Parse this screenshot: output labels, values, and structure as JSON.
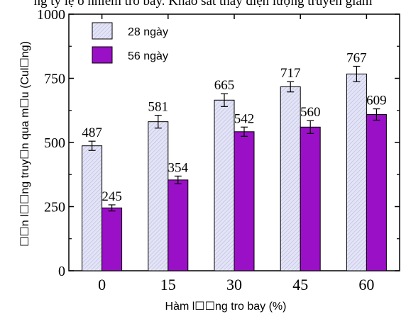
{
  "caption_fragment": "ng tỷ lệ ô nhiễm tro bay. Khảo sát thấy điện lượng truyền giảm",
  "colors": {
    "series_28": "#e4e4f8",
    "series_56": "#9a10c6",
    "hatch": "#b8b8d8"
  },
  "chart_data": {
    "type": "bar",
    "categories": [
      "0",
      "15",
      "30",
      "45",
      "60"
    ],
    "xlabel": "Hàm l☐☐ng tro bay (%)",
    "ylabel": "☐☐n l☐☐ng truy☐n qua m☐u (Cul☐ng)",
    "ylim": [
      0,
      1000
    ],
    "yticks": [
      "0",
      "250",
      "500",
      "750",
      "1000"
    ],
    "grid": false,
    "legend_placement": "top-left",
    "series": [
      {
        "name": "28 ngày",
        "values": [
          487,
          581,
          665,
          717,
          767
        ],
        "errors": [
          18,
          25,
          25,
          20,
          30
        ],
        "labels": [
          "487",
          "581",
          "665",
          "717",
          "767"
        ]
      },
      {
        "name": "56 ngày",
        "values": [
          245,
          354,
          542,
          560,
          609
        ],
        "errors": [
          12,
          15,
          18,
          25,
          22
        ],
        "labels": [
          "245",
          "354",
          "542",
          "560",
          "609"
        ]
      }
    ]
  }
}
